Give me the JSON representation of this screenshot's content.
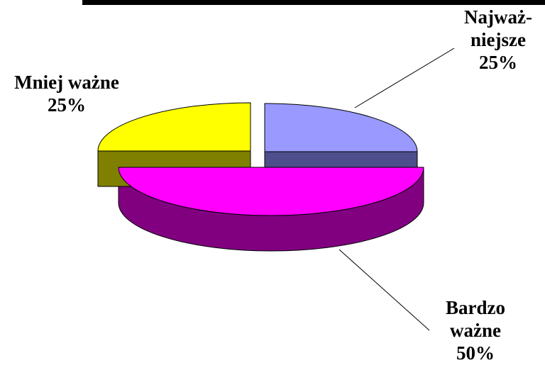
{
  "chart_data": {
    "type": "pie",
    "style": "3d-exploded",
    "slices": [
      {
        "label_lines": [
          "Najważ-",
          "niejsze"
        ],
        "value_label": "25%",
        "value": 25,
        "color": "#9999FF",
        "side_color": "#4E4E8C"
      },
      {
        "label_lines": [
          "Bardzo",
          "ważne"
        ],
        "value_label": "50%",
        "value": 50,
        "color": "#FF00FF",
        "side_color": "#800080"
      },
      {
        "label_lines": [
          "Mniej ważne"
        ],
        "value_label": "25%",
        "value": 25,
        "color": "#FFFF00",
        "side_color": "#808000"
      }
    ],
    "title": "",
    "legend": "none",
    "data_labels": "outside-with-leader-lines"
  }
}
